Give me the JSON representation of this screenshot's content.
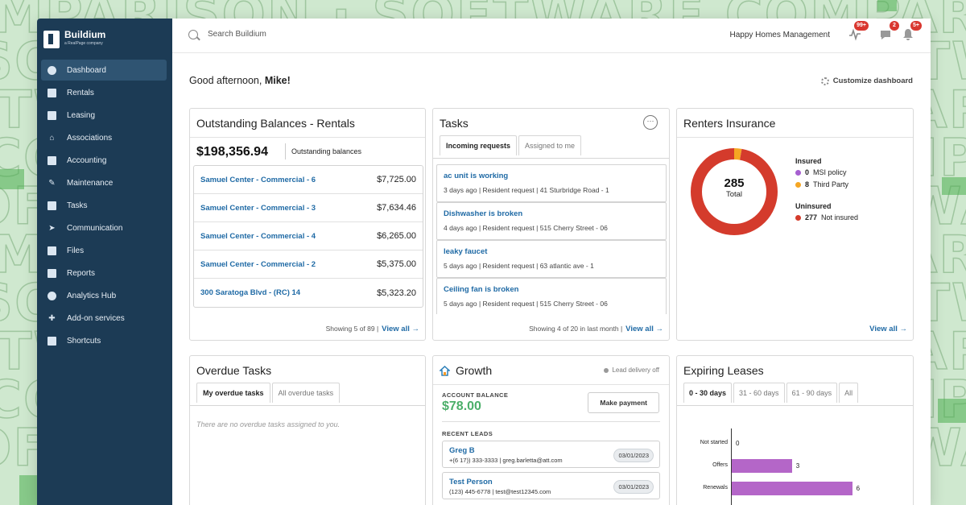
{
  "sidebar": {
    "brand": "Buildium",
    "brand_sub": "a RealPage company",
    "items": [
      {
        "label": "Dashboard",
        "icon": "dashboard-icon"
      },
      {
        "label": "Rentals",
        "icon": "building-icon"
      },
      {
        "label": "Leasing",
        "icon": "leasing-icon"
      },
      {
        "label": "Associations",
        "icon": "associations-icon"
      },
      {
        "label": "Accounting",
        "icon": "calculator-icon"
      },
      {
        "label": "Maintenance",
        "icon": "wrench-icon"
      },
      {
        "label": "Tasks",
        "icon": "clipboard-icon"
      },
      {
        "label": "Communication",
        "icon": "send-icon"
      },
      {
        "label": "Files",
        "icon": "folder-icon"
      },
      {
        "label": "Reports",
        "icon": "report-icon"
      },
      {
        "label": "Analytics Hub",
        "icon": "pie-chart-icon"
      },
      {
        "label": "Add-on services",
        "icon": "puzzle-icon"
      },
      {
        "label": "Shortcuts",
        "icon": "shortcut-icon"
      }
    ]
  },
  "topbar": {
    "search_placeholder": "Search Buildium",
    "company": "Happy Homes Management",
    "activity_badge": "99+",
    "messages_badge": "2",
    "notifications_badge": "5+"
  },
  "greeting": {
    "prefix": "Good afternoon,",
    "name": "Mike!"
  },
  "customize_label": "Customize dashboard",
  "balances": {
    "title": "Outstanding Balances - Rentals",
    "total": "$198,356.94",
    "total_label": "Outstanding balances",
    "rows": [
      {
        "name": "Samuel Center - Commercial - 6",
        "amount": "$7,725.00"
      },
      {
        "name": "Samuel Center - Commercial - 3",
        "amount": "$7,634.46"
      },
      {
        "name": "Samuel Center - Commercial - 4",
        "amount": "$6,265.00"
      },
      {
        "name": "Samuel Center - Commercial - 2",
        "amount": "$5,375.00"
      },
      {
        "name": "300 Saratoga Blvd - (RC) 14",
        "amount": "$5,323.20"
      }
    ],
    "footer": "Showing 5 of 89 |",
    "view_all": "View all →"
  },
  "tasks": {
    "title": "Tasks",
    "tabs": [
      "Incoming requests",
      "Assigned to me"
    ],
    "items": [
      {
        "title": "ac unit is working",
        "meta": "3 days ago | Resident request | 41 Sturbridge Road - 1"
      },
      {
        "title": "Dishwasher is broken",
        "meta": "4 days ago | Resident request | 515 Cherry Street - 06"
      },
      {
        "title": "leaky faucet",
        "meta": "5 days ago | Resident request | 63 atlantic ave - 1"
      },
      {
        "title": "Ceiling fan is broken",
        "meta": "5 days ago | Resident request | 515 Cherry Street - 06"
      }
    ],
    "footer": "Showing 4 of 20 in last month |",
    "view_all": "View all →"
  },
  "insurance": {
    "title": "Renters Insurance",
    "total": "285",
    "total_label": "Total",
    "insured_label": "Insured",
    "uninsured_label": "Uninsured",
    "msi_count": "0",
    "msi_label": "MSI policy",
    "third_count": "8",
    "third_label": "Third Party",
    "not_insured_count": "277",
    "not_insured_label": "Not insured",
    "view_all": "View all →",
    "colors": {
      "msi": "#a65fd0",
      "third": "#f5a623",
      "not_insured": "#d43b2c"
    }
  },
  "overdue": {
    "title": "Overdue Tasks",
    "tabs": [
      "My overdue tasks",
      "All overdue tasks"
    ],
    "empty": "There are no overdue tasks assigned to you."
  },
  "growth": {
    "title": "Growth",
    "lead_delivery": "Lead delivery off",
    "account_balance_label": "ACCOUNT BALANCE",
    "account_balance": "$78.00",
    "make_payment": "Make payment",
    "recent_leads_label": "RECENT LEADS",
    "leads": [
      {
        "name": "Greg B",
        "info": "+(6 17)) 333-3333 | greg.barletta@att.com",
        "date": "03/01/2023"
      },
      {
        "name": "Test Person",
        "info": "(123) 445-6778 | test@test12345.com",
        "date": "03/01/2023"
      }
    ]
  },
  "expiring": {
    "title": "Expiring Leases",
    "tabs": [
      "0 - 30 days",
      "31 - 60 days",
      "61 - 90 days",
      "All"
    ]
  },
  "chart_data": {
    "type": "bar",
    "orientation": "horizontal",
    "categories": [
      "Not started",
      "Offers",
      "Renewals"
    ],
    "values": [
      0,
      3,
      6
    ],
    "title": "",
    "xlabel": "",
    "ylabel": ""
  }
}
